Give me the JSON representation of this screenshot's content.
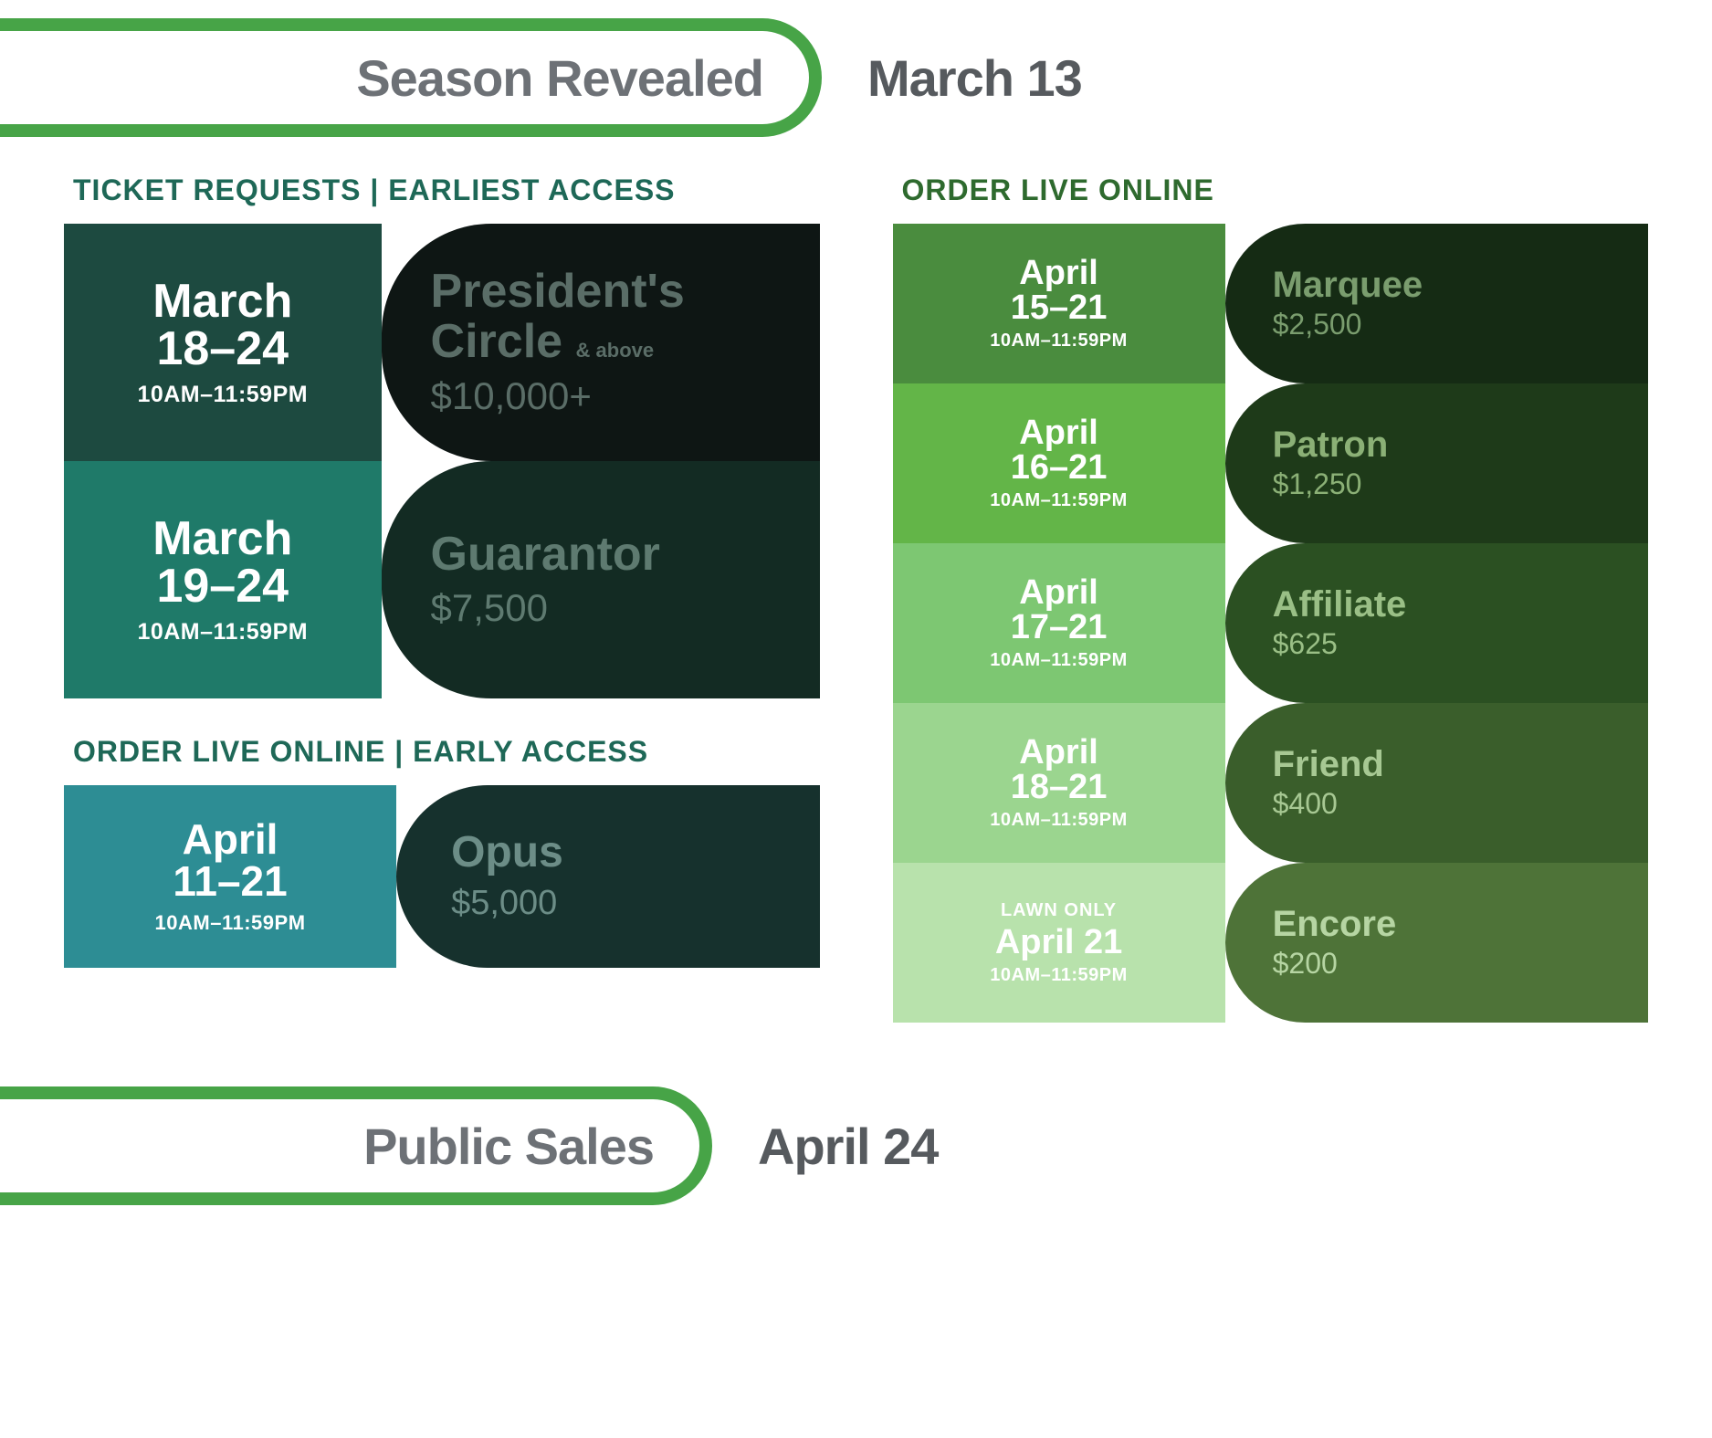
{
  "banner_top": {
    "label": "Season Revealed",
    "date": "March 13"
  },
  "banner_bottom": {
    "label": "Public Sales",
    "date": "April 24"
  },
  "colors": {
    "banner_border": "#47a447",
    "banner_text_label": "#6d7176",
    "banner_text_date": "#565a5e",
    "label_left": "#1e6857",
    "label_right": "#2e6a2e"
  },
  "left": {
    "section1_label": "TICKET REQUESTS | EARLIEST ACCESS",
    "section2_label": "ORDER LIVE ONLINE | EARLY ACCESS",
    "tiers1": [
      {
        "month": "March",
        "days": "18–24",
        "time": "10AM–11:59PM",
        "name": "President's Circle",
        "suffix": "& above",
        "price": "$10,000+",
        "bg_left": "#1d4a40",
        "bg_right": "#0e1614",
        "text_right": "#5a6d67"
      },
      {
        "month": "March",
        "days": "19–24",
        "time": "10AM–11:59PM",
        "name": "Guarantor",
        "suffix": "",
        "price": "$7,500",
        "bg_left": "#1f7a69",
        "bg_right": "#132b23",
        "text_right": "#5e7a70"
      }
    ],
    "tiers2": [
      {
        "month": "April",
        "days": "11–21",
        "time": "10AM–11:59PM",
        "name": "Opus",
        "suffix": "",
        "price": "$5,000",
        "bg_left": "#2d8d94",
        "bg_right": "#16312d",
        "text_right": "#6c8d87"
      }
    ]
  },
  "right": {
    "section_label": "ORDER LIVE ONLINE",
    "tiers": [
      {
        "note": "",
        "month": "April",
        "days": "15–21",
        "time": "10AM–11:59PM",
        "name": "Marquee",
        "price": "$2,500",
        "bg_left": "#4a8c3e",
        "bg_right": "#152b14",
        "text_right": "#7a9d6e"
      },
      {
        "note": "",
        "month": "April",
        "days": "16–21",
        "time": "10AM–11:59PM",
        "name": "Patron",
        "price": "$1,250",
        "bg_left": "#63b548",
        "bg_right": "#1e3a19",
        "text_right": "#8bb076"
      },
      {
        "note": "",
        "month": "April",
        "days": "17–21",
        "time": "10AM–11:59PM",
        "name": "Affiliate",
        "price": "$625",
        "bg_left": "#7dc772",
        "bg_right": "#2b5022",
        "text_right": "#9abf86"
      },
      {
        "note": "",
        "month": "April",
        "days": "18–21",
        "time": "10AM–11:59PM",
        "name": "Friend",
        "price": "$400",
        "bg_left": "#9bd58f",
        "bg_right": "#3a5e2b",
        "text_right": "#a7c893"
      },
      {
        "note": "LAWN ONLY",
        "month": "April",
        "days": "21",
        "time": "10AM–11:59PM",
        "name": "Encore",
        "price": "$200",
        "bg_left": "#b8e2ac",
        "bg_right": "#4e7338",
        "text_right": "#b6d5a3"
      }
    ]
  }
}
